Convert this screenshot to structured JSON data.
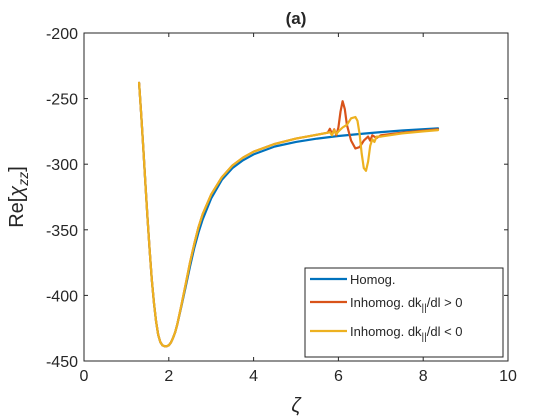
{
  "chart_data": {
    "type": "line",
    "title": "(a)",
    "xlabel": "ζ",
    "ylabel_main": "Re[",
    "ylabel_symbol": "χ",
    "ylabel_sub": "zz",
    "ylabel_close": "]",
    "xlim": [
      0,
      10
    ],
    "ylim": [
      -450,
      -200
    ],
    "xticks": [
      0,
      2,
      4,
      6,
      8,
      10
    ],
    "yticks": [
      -200,
      -250,
      -300,
      -350,
      -400,
      -450
    ],
    "grid": false,
    "legend_position": "bottom-right",
    "series": [
      {
        "name": "Homog.",
        "legend_parts": [
          "Homog."
        ],
        "color": "#0072BD",
        "points": [
          [
            1.3,
            -238
          ],
          [
            1.35,
            -262
          ],
          [
            1.4,
            -289
          ],
          [
            1.45,
            -316
          ],
          [
            1.5,
            -342
          ],
          [
            1.55,
            -366
          ],
          [
            1.6,
            -388
          ],
          [
            1.65,
            -406
          ],
          [
            1.7,
            -420
          ],
          [
            1.75,
            -430
          ],
          [
            1.8,
            -435.5
          ],
          [
            1.85,
            -438
          ],
          [
            1.9,
            -438.8
          ],
          [
            1.95,
            -438.8
          ],
          [
            2.0,
            -438
          ],
          [
            2.05,
            -436
          ],
          [
            2.1,
            -432.5
          ],
          [
            2.15,
            -428
          ],
          [
            2.2,
            -422
          ],
          [
            2.3,
            -408
          ],
          [
            2.4,
            -393
          ],
          [
            2.5,
            -378
          ],
          [
            2.6,
            -364
          ],
          [
            2.7,
            -352
          ],
          [
            2.8,
            -342
          ],
          [
            3.0,
            -326
          ],
          [
            3.25,
            -312
          ],
          [
            3.5,
            -303
          ],
          [
            3.75,
            -297
          ],
          [
            4.0,
            -292.5
          ],
          [
            4.5,
            -286.5
          ],
          [
            5.0,
            -283
          ],
          [
            5.5,
            -280.5
          ],
          [
            6.0,
            -278.5
          ],
          [
            6.5,
            -277
          ],
          [
            7.0,
            -275.5
          ],
          [
            7.5,
            -274.3
          ],
          [
            8.0,
            -273.3
          ],
          [
            8.35,
            -272.7
          ]
        ]
      },
      {
        "name": "Inhomog. dk||/dl > 0",
        "legend_parts": [
          "Inhomog. dk",
          "||",
          "/dl > 0"
        ],
        "color": "#D95319",
        "points": [
          [
            1.3,
            -238
          ],
          [
            1.35,
            -262
          ],
          [
            1.4,
            -289
          ],
          [
            1.45,
            -316
          ],
          [
            1.5,
            -342
          ],
          [
            1.55,
            -366
          ],
          [
            1.6,
            -388
          ],
          [
            1.65,
            -406
          ],
          [
            1.7,
            -420
          ],
          [
            1.75,
            -430
          ],
          [
            1.8,
            -435.5
          ],
          [
            1.85,
            -438
          ],
          [
            1.9,
            -438.8
          ],
          [
            1.95,
            -438.8
          ],
          [
            2.0,
            -438
          ],
          [
            2.05,
            -436
          ],
          [
            2.1,
            -432.5
          ],
          [
            2.15,
            -428
          ],
          [
            2.2,
            -422
          ],
          [
            2.3,
            -407
          ],
          [
            2.4,
            -391
          ],
          [
            2.5,
            -375
          ],
          [
            2.6,
            -361
          ],
          [
            2.7,
            -348
          ],
          [
            2.8,
            -338
          ],
          [
            3.0,
            -323
          ],
          [
            3.25,
            -310
          ],
          [
            3.5,
            -301
          ],
          [
            3.75,
            -295
          ],
          [
            4.0,
            -290.5
          ],
          [
            4.5,
            -284.5
          ],
          [
            5.0,
            -280.5
          ],
          [
            5.5,
            -277.5
          ],
          [
            5.75,
            -276
          ],
          [
            5.8,
            -273
          ],
          [
            5.85,
            -277
          ],
          [
            5.9,
            -273.5
          ],
          [
            5.95,
            -278
          ],
          [
            6.0,
            -272
          ],
          [
            6.05,
            -260
          ],
          [
            6.1,
            -252
          ],
          [
            6.15,
            -258
          ],
          [
            6.2,
            -270
          ],
          [
            6.3,
            -282
          ],
          [
            6.4,
            -288
          ],
          [
            6.5,
            -287
          ],
          [
            6.6,
            -282
          ],
          [
            6.7,
            -279
          ],
          [
            6.75,
            -282
          ],
          [
            6.8,
            -278
          ],
          [
            6.9,
            -280
          ],
          [
            7.0,
            -278
          ],
          [
            7.5,
            -276
          ],
          [
            8.0,
            -274.5
          ],
          [
            8.35,
            -273.5
          ]
        ]
      },
      {
        "name": "Inhomog. dk||/dl < 0",
        "legend_parts": [
          "Inhomog. dk",
          "||",
          "/dl < 0"
        ],
        "color": "#EDB120",
        "points": [
          [
            1.3,
            -238
          ],
          [
            1.35,
            -262
          ],
          [
            1.4,
            -289
          ],
          [
            1.45,
            -316
          ],
          [
            1.5,
            -342
          ],
          [
            1.55,
            -366
          ],
          [
            1.6,
            -388
          ],
          [
            1.65,
            -406
          ],
          [
            1.7,
            -420
          ],
          [
            1.75,
            -430
          ],
          [
            1.8,
            -435.5
          ],
          [
            1.85,
            -438
          ],
          [
            1.9,
            -438.8
          ],
          [
            1.95,
            -438.8
          ],
          [
            2.0,
            -438
          ],
          [
            2.05,
            -436
          ],
          [
            2.1,
            -432.5
          ],
          [
            2.15,
            -428
          ],
          [
            2.2,
            -422
          ],
          [
            2.3,
            -407
          ],
          [
            2.4,
            -391
          ],
          [
            2.5,
            -375
          ],
          [
            2.6,
            -361
          ],
          [
            2.7,
            -348
          ],
          [
            2.8,
            -338
          ],
          [
            3.0,
            -323
          ],
          [
            3.25,
            -310
          ],
          [
            3.5,
            -301
          ],
          [
            3.75,
            -295
          ],
          [
            4.0,
            -290.5
          ],
          [
            4.5,
            -284.5
          ],
          [
            5.0,
            -280.5
          ],
          [
            5.5,
            -277.5
          ],
          [
            5.75,
            -276
          ],
          [
            5.8,
            -275.5
          ],
          [
            5.85,
            -278
          ],
          [
            5.9,
            -274
          ],
          [
            5.95,
            -277
          ],
          [
            6.0,
            -275
          ],
          [
            6.1,
            -272
          ],
          [
            6.2,
            -270
          ],
          [
            6.3,
            -265
          ],
          [
            6.4,
            -264
          ],
          [
            6.45,
            -267
          ],
          [
            6.5,
            -277
          ],
          [
            6.55,
            -292
          ],
          [
            6.6,
            -303
          ],
          [
            6.65,
            -305
          ],
          [
            6.7,
            -298
          ],
          [
            6.75,
            -286
          ],
          [
            6.8,
            -281
          ],
          [
            6.85,
            -283
          ],
          [
            6.9,
            -279
          ],
          [
            7.0,
            -279
          ],
          [
            7.5,
            -276.5
          ],
          [
            8.0,
            -275
          ],
          [
            8.35,
            -274
          ]
        ]
      }
    ]
  }
}
